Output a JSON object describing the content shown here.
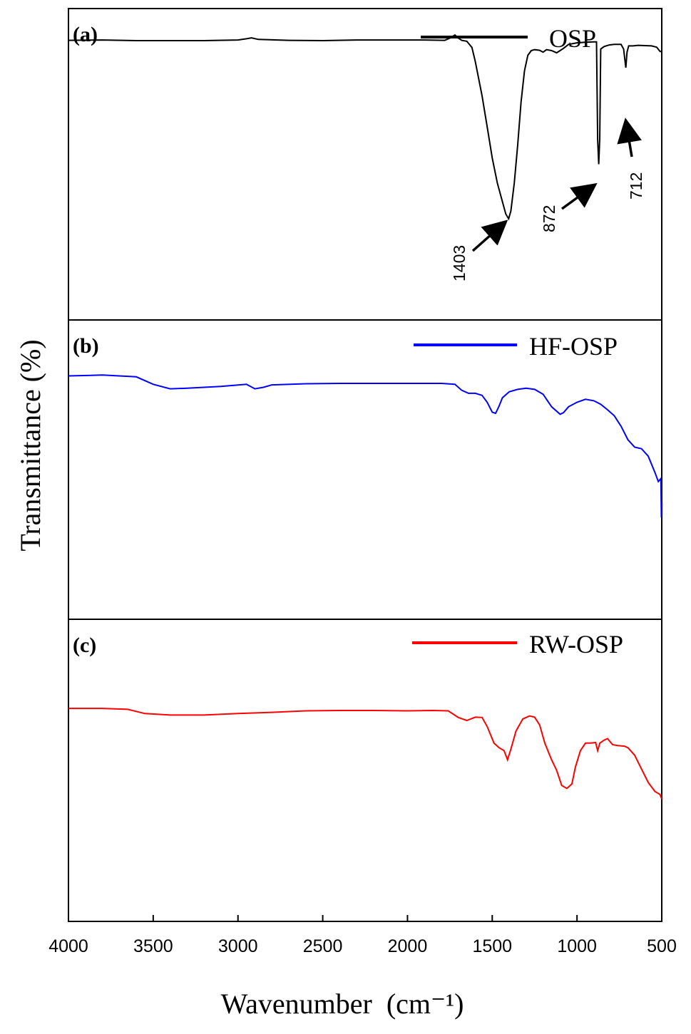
{
  "chart_data": {
    "type": "line",
    "title": "",
    "xlabel": "Wavenumber",
    "xlabel_unit": "(cm⁻¹)",
    "ylabel": "Transmittance (%)",
    "xlim": [
      4000,
      500
    ],
    "ylim": [
      0,
      1
    ],
    "x_ticks": [
      4000,
      3500,
      3000,
      2500,
      2000,
      1500,
      1000,
      500
    ],
    "panels": [
      {
        "label": "(a)",
        "series_name": "OSP",
        "color": "#000000",
        "points": [
          [
            4000,
            0.898
          ],
          [
            3800,
            0.899
          ],
          [
            3600,
            0.897
          ],
          [
            3400,
            0.897
          ],
          [
            3200,
            0.897
          ],
          [
            3000,
            0.899
          ],
          [
            2950,
            0.903
          ],
          [
            2920,
            0.906
          ],
          [
            2880,
            0.901
          ],
          [
            2700,
            0.898
          ],
          [
            2500,
            0.897
          ],
          [
            2300,
            0.899
          ],
          [
            2100,
            0.899
          ],
          [
            1900,
            0.899
          ],
          [
            1780,
            0.898
          ],
          [
            1750,
            0.905
          ],
          [
            1720,
            0.915
          ],
          [
            1700,
            0.905
          ],
          [
            1680,
            0.898
          ],
          [
            1650,
            0.895
          ],
          [
            1620,
            0.875
          ],
          [
            1600,
            0.83
          ],
          [
            1560,
            0.72
          ],
          [
            1530,
            0.62
          ],
          [
            1500,
            0.52
          ],
          [
            1470,
            0.44
          ],
          [
            1440,
            0.38
          ],
          [
            1420,
            0.34
          ],
          [
            1403,
            0.325
          ],
          [
            1390,
            0.35
          ],
          [
            1370,
            0.44
          ],
          [
            1350,
            0.56
          ],
          [
            1330,
            0.7
          ],
          [
            1310,
            0.8
          ],
          [
            1290,
            0.85
          ],
          [
            1270,
            0.865
          ],
          [
            1250,
            0.868
          ],
          [
            1220,
            0.866
          ],
          [
            1200,
            0.86
          ],
          [
            1180,
            0.868
          ],
          [
            1150,
            0.865
          ],
          [
            1120,
            0.858
          ],
          [
            1100,
            0.865
          ],
          [
            1080,
            0.872
          ],
          [
            1050,
            0.885
          ],
          [
            1000,
            0.89
          ],
          [
            950,
            0.892
          ],
          [
            900,
            0.893
          ],
          [
            885,
            0.893
          ],
          [
            878,
            0.58
          ],
          [
            872,
            0.5
          ],
          [
            866,
            0.58
          ],
          [
            860,
            0.87
          ],
          [
            840,
            0.878
          ],
          [
            810,
            0.883
          ],
          [
            780,
            0.885
          ],
          [
            740,
            0.885
          ],
          [
            725,
            0.87
          ],
          [
            712,
            0.81
          ],
          [
            705,
            0.86
          ],
          [
            695,
            0.88
          ],
          [
            670,
            0.88
          ],
          [
            640,
            0.882
          ],
          [
            600,
            0.881
          ],
          [
            560,
            0.88
          ],
          [
            530,
            0.876
          ],
          [
            510,
            0.862
          ],
          [
            500,
            0.862
          ]
        ],
        "annotations": [
          {
            "text": "1403",
            "x": 1403
          },
          {
            "text": "872",
            "x": 872
          },
          {
            "text": "712",
            "x": 712
          }
        ]
      },
      {
        "label": "(b)",
        "series_name": "HF-OSP",
        "color": "#0000ff",
        "points": [
          [
            4000,
            0.813
          ],
          [
            3800,
            0.816
          ],
          [
            3600,
            0.81
          ],
          [
            3500,
            0.785
          ],
          [
            3400,
            0.77
          ],
          [
            3300,
            0.772
          ],
          [
            3100,
            0.778
          ],
          [
            2950,
            0.785
          ],
          [
            2900,
            0.77
          ],
          [
            2850,
            0.775
          ],
          [
            2800,
            0.783
          ],
          [
            2600,
            0.787
          ],
          [
            2400,
            0.788
          ],
          [
            2200,
            0.788
          ],
          [
            2000,
            0.788
          ],
          [
            1800,
            0.788
          ],
          [
            1720,
            0.785
          ],
          [
            1680,
            0.765
          ],
          [
            1640,
            0.755
          ],
          [
            1600,
            0.755
          ],
          [
            1560,
            0.748
          ],
          [
            1530,
            0.725
          ],
          [
            1500,
            0.692
          ],
          [
            1480,
            0.688
          ],
          [
            1460,
            0.712
          ],
          [
            1440,
            0.74
          ],
          [
            1400,
            0.76
          ],
          [
            1350,
            0.768
          ],
          [
            1300,
            0.772
          ],
          [
            1250,
            0.768
          ],
          [
            1200,
            0.752
          ],
          [
            1150,
            0.71
          ],
          [
            1100,
            0.685
          ],
          [
            1080,
            0.69
          ],
          [
            1050,
            0.71
          ],
          [
            1000,
            0.725
          ],
          [
            950,
            0.735
          ],
          [
            900,
            0.73
          ],
          [
            860,
            0.718
          ],
          [
            820,
            0.7
          ],
          [
            780,
            0.68
          ],
          [
            740,
            0.645
          ],
          [
            700,
            0.6
          ],
          [
            660,
            0.575
          ],
          [
            620,
            0.57
          ],
          [
            580,
            0.545
          ],
          [
            540,
            0.49
          ],
          [
            520,
            0.46
          ],
          [
            505,
            0.47
          ],
          [
            502,
            0.34
          ],
          [
            500,
            0.39
          ]
        ]
      },
      {
        "label": "(c)",
        "series_name": "RW-OSP",
        "color": "#ff0000",
        "points": [
          [
            4000,
            0.705
          ],
          [
            3800,
            0.705
          ],
          [
            3650,
            0.702
          ],
          [
            3550,
            0.688
          ],
          [
            3400,
            0.683
          ],
          [
            3200,
            0.683
          ],
          [
            3000,
            0.688
          ],
          [
            2800,
            0.692
          ],
          [
            2600,
            0.697
          ],
          [
            2400,
            0.698
          ],
          [
            2200,
            0.698
          ],
          [
            2000,
            0.697
          ],
          [
            1850,
            0.698
          ],
          [
            1760,
            0.697
          ],
          [
            1700,
            0.675
          ],
          [
            1650,
            0.665
          ],
          [
            1600,
            0.676
          ],
          [
            1560,
            0.675
          ],
          [
            1530,
            0.645
          ],
          [
            1490,
            0.59
          ],
          [
            1460,
            0.575
          ],
          [
            1430,
            0.565
          ],
          [
            1410,
            0.535
          ],
          [
            1390,
            0.57
          ],
          [
            1360,
            0.63
          ],
          [
            1320,
            0.67
          ],
          [
            1280,
            0.68
          ],
          [
            1250,
            0.676
          ],
          [
            1220,
            0.65
          ],
          [
            1190,
            0.59
          ],
          [
            1150,
            0.535
          ],
          [
            1120,
            0.5
          ],
          [
            1090,
            0.45
          ],
          [
            1060,
            0.44
          ],
          [
            1030,
            0.455
          ],
          [
            1010,
            0.51
          ],
          [
            980,
            0.565
          ],
          [
            950,
            0.59
          ],
          [
            920,
            0.59
          ],
          [
            890,
            0.592
          ],
          [
            878,
            0.565
          ],
          [
            865,
            0.59
          ],
          [
            840,
            0.6
          ],
          [
            820,
            0.605
          ],
          [
            790,
            0.585
          ],
          [
            760,
            0.582
          ],
          [
            720,
            0.58
          ],
          [
            700,
            0.575
          ],
          [
            660,
            0.55
          ],
          [
            620,
            0.505
          ],
          [
            580,
            0.46
          ],
          [
            540,
            0.43
          ],
          [
            510,
            0.42
          ],
          [
            500,
            0.405
          ]
        ]
      }
    ]
  }
}
